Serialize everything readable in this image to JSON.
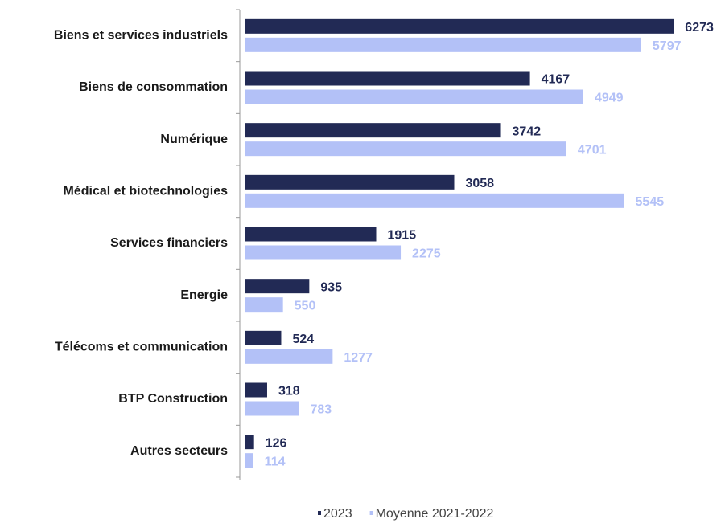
{
  "chart_data": {
    "type": "bar",
    "orientation": "horizontal",
    "categories": [
      "Biens et services industriels",
      "Biens de consommation",
      "Numérique",
      "Médical et biotechnologies",
      "Services financiers",
      "Energie",
      "Télécoms et communication",
      "BTP Construction",
      "Autres secteurs"
    ],
    "series": [
      {
        "name": "2023",
        "color": "#222a55",
        "values": [
          6273,
          4167,
          3742,
          3058,
          1915,
          935,
          524,
          318,
          126
        ]
      },
      {
        "name": "Moyenne 2021-2022",
        "color": "#b3c1f7",
        "values": [
          5797,
          4949,
          4701,
          5545,
          2275,
          550,
          1277,
          783,
          114
        ]
      }
    ],
    "xlim": [
      0,
      7000
    ],
    "legend": "bottom"
  }
}
